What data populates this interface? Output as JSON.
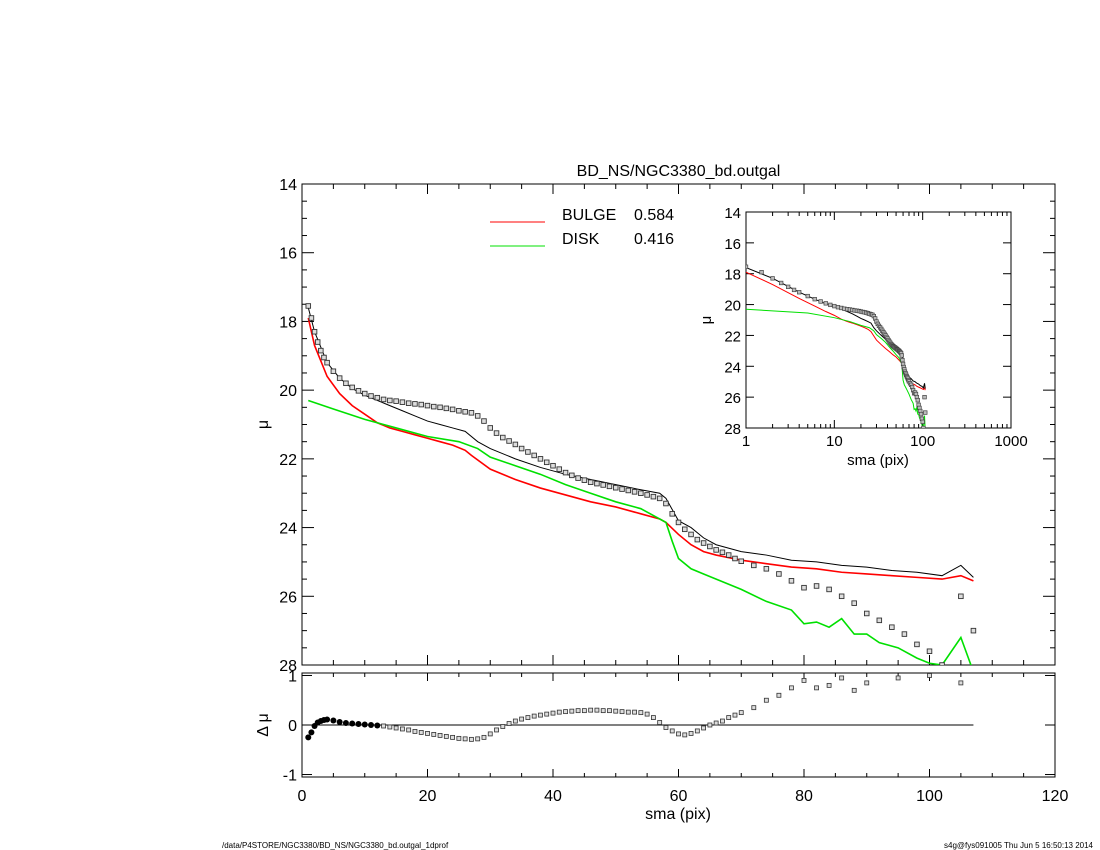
{
  "chart_data": [
    {
      "type": "line",
      "title": "BD_NS/NGC3380_bd.outgal",
      "xlabel": "",
      "ylabel": "μ",
      "xlim": [
        0,
        120
      ],
      "ylim": [
        28,
        14
      ],
      "yticks": [
        "14",
        "16",
        "18",
        "20",
        "22",
        "24",
        "26",
        "28"
      ],
      "legend": [
        {
          "label": "BULGE",
          "value": "0.584",
          "color": "#ff0000"
        },
        {
          "label": "DISK",
          "value": "0.416",
          "color": "#00e000"
        }
      ],
      "series": [
        {
          "name": "BULGE",
          "color": "#ff0000",
          "x": [
            1,
            2,
            4,
            6,
            8,
            10,
            12,
            14,
            16,
            18,
            20,
            22,
            24,
            26,
            27,
            30,
            34,
            38,
            42,
            46,
            50,
            54,
            57,
            58,
            60,
            62,
            64,
            66,
            70,
            74,
            78,
            82,
            86,
            90,
            94,
            98,
            102,
            105,
            107
          ],
          "y": [
            17.9,
            18.7,
            19.6,
            20.1,
            20.45,
            20.7,
            20.95,
            21.1,
            21.2,
            21.3,
            21.4,
            21.5,
            21.6,
            21.75,
            21.9,
            22.3,
            22.6,
            22.85,
            23.05,
            23.25,
            23.4,
            23.6,
            23.75,
            23.85,
            24.2,
            24.5,
            24.7,
            24.8,
            24.95,
            25.05,
            25.15,
            25.2,
            25.3,
            25.35,
            25.4,
            25.45,
            25.5,
            25.4,
            25.55
          ]
        },
        {
          "name": "DISK",
          "color": "#00e000",
          "x": [
            1,
            5,
            10,
            15,
            20,
            25,
            28,
            30,
            34,
            38,
            42,
            46,
            50,
            54,
            57,
            58,
            59,
            60,
            62,
            64,
            66,
            70,
            74,
            78,
            80,
            82,
            84,
            86,
            88,
            90,
            92,
            95,
            98,
            100,
            102,
            105,
            107
          ],
          "y": [
            20.3,
            20.55,
            20.85,
            21.1,
            21.35,
            21.5,
            21.7,
            21.95,
            22.2,
            22.45,
            22.75,
            23.0,
            23.25,
            23.45,
            23.75,
            23.85,
            24.4,
            24.9,
            25.2,
            25.35,
            25.5,
            25.8,
            26.15,
            26.4,
            26.8,
            26.75,
            26.9,
            26.65,
            27.1,
            27.1,
            27.35,
            27.5,
            27.8,
            27.95,
            28.0,
            27.2,
            28.2
          ]
        },
        {
          "name": "",
          "color": "#000000",
          "x": [
            1,
            2,
            4,
            6,
            8,
            10,
            12,
            14,
            16,
            18,
            20,
            22,
            24,
            26,
            28,
            30,
            34,
            38,
            42,
            46,
            50,
            54,
            57,
            58,
            60,
            62,
            64,
            66,
            70,
            74,
            78,
            82,
            86,
            90,
            94,
            98,
            102,
            105,
            107
          ],
          "y": [
            17.6,
            18.3,
            19.2,
            19.65,
            19.95,
            20.15,
            20.3,
            20.45,
            20.6,
            20.75,
            20.9,
            21.0,
            21.1,
            21.2,
            21.5,
            21.7,
            22.0,
            22.25,
            22.45,
            22.6,
            22.75,
            22.9,
            23.0,
            23.15,
            23.8,
            24.0,
            24.3,
            24.5,
            24.7,
            24.8,
            24.95,
            25.0,
            25.1,
            25.15,
            25.25,
            25.3,
            25.4,
            25.1,
            25.45
          ]
        }
      ],
      "points": {
        "x": [
          1,
          1.5,
          2,
          2.5,
          3,
          3.5,
          4,
          5,
          6,
          7,
          8,
          9,
          10,
          11,
          12,
          13,
          14,
          15,
          16,
          17,
          18,
          19,
          20,
          21,
          22,
          23,
          24,
          25,
          26,
          27,
          28,
          29,
          30,
          31,
          32,
          33,
          34,
          35,
          36,
          37,
          38,
          39,
          40,
          41,
          42,
          43,
          44,
          45,
          46,
          47,
          48,
          49,
          50,
          51,
          52,
          53,
          54,
          55,
          56,
          57,
          58,
          59,
          60,
          61,
          62,
          63,
          64,
          65,
          66,
          67,
          68,
          69,
          70,
          72,
          74,
          76,
          78,
          80,
          82,
          84,
          86,
          88,
          90,
          92,
          94,
          96,
          98,
          100,
          102,
          105,
          107
        ],
        "y": [
          17.55,
          17.9,
          18.3,
          18.6,
          18.85,
          19.05,
          19.2,
          19.45,
          19.65,
          19.8,
          19.92,
          20.02,
          20.1,
          20.17,
          20.22,
          20.27,
          20.3,
          20.32,
          20.35,
          20.38,
          20.4,
          20.42,
          20.45,
          20.48,
          20.5,
          20.53,
          20.56,
          20.6,
          20.63,
          20.66,
          20.75,
          20.9,
          21.1,
          21.25,
          21.38,
          21.48,
          21.58,
          21.7,
          21.8,
          21.9,
          22.0,
          22.1,
          22.2,
          22.3,
          22.4,
          22.48,
          22.56,
          22.62,
          22.68,
          22.72,
          22.76,
          22.8,
          22.84,
          22.88,
          22.92,
          22.96,
          23.0,
          23.05,
          23.1,
          23.15,
          23.3,
          23.6,
          23.85,
          24.05,
          24.2,
          24.35,
          24.45,
          24.55,
          24.65,
          24.72,
          24.8,
          24.9,
          24.98,
          25.1,
          25.2,
          25.35,
          25.55,
          25.75,
          25.7,
          25.8,
          26.0,
          26.2,
          26.5,
          26.7,
          26.9,
          27.1,
          27.4,
          27.6,
          28.0,
          26.0,
          27.0
        ]
      }
    },
    {
      "type": "scatter",
      "xlabel": "sma (pix)",
      "ylabel": "Δ μ",
      "xlim": [
        0,
        120
      ],
      "ylim": [
        -1,
        1
      ],
      "xticks": [
        "0",
        "20",
        "40",
        "60",
        "80",
        "100",
        "120"
      ],
      "yticks": [
        "-1",
        "0",
        "1"
      ],
      "residuals": {
        "x": [
          1,
          1.5,
          2,
          2.5,
          3,
          3.5,
          4,
          5,
          6,
          7,
          8,
          9,
          10,
          11,
          12,
          13,
          14,
          15,
          16,
          17,
          18,
          19,
          20,
          21,
          22,
          23,
          24,
          25,
          26,
          27,
          28,
          29,
          30,
          31,
          32,
          33,
          34,
          35,
          36,
          37,
          38,
          39,
          40,
          41,
          42,
          43,
          44,
          45,
          46,
          47,
          48,
          49,
          50,
          51,
          52,
          53,
          54,
          55,
          56,
          57,
          58,
          59,
          60,
          61,
          62,
          63,
          64,
          65,
          66,
          67,
          68,
          69,
          70,
          72,
          74,
          76,
          78,
          80,
          82,
          84,
          86,
          88,
          90,
          95,
          100,
          105
        ],
        "y": [
          -0.25,
          -0.15,
          -0.02,
          0.05,
          0.08,
          0.1,
          0.11,
          0.09,
          0.06,
          0.04,
          0.03,
          0.02,
          0.01,
          0.0,
          -0.01,
          -0.02,
          -0.04,
          -0.06,
          -0.08,
          -0.1,
          -0.13,
          -0.15,
          -0.17,
          -0.19,
          -0.21,
          -0.23,
          -0.25,
          -0.27,
          -0.28,
          -0.29,
          -0.28,
          -0.25,
          -0.18,
          -0.1,
          -0.03,
          0.03,
          0.08,
          0.12,
          0.15,
          0.18,
          0.2,
          0.22,
          0.24,
          0.26,
          0.27,
          0.28,
          0.29,
          0.29,
          0.3,
          0.3,
          0.29,
          0.29,
          0.28,
          0.27,
          0.26,
          0.26,
          0.25,
          0.22,
          0.15,
          0.05,
          -0.05,
          -0.12,
          -0.18,
          -0.2,
          -0.17,
          -0.12,
          -0.06,
          0.0,
          0.04,
          0.08,
          0.15,
          0.2,
          0.25,
          0.35,
          0.5,
          0.6,
          0.75,
          0.9,
          0.75,
          0.8,
          0.95,
          0.7,
          0.85,
          0.95,
          1.0,
          0.85
        ]
      }
    },
    {
      "type": "line",
      "xlabel": "sma (pix)",
      "ylabel": "μ",
      "xscale": "log",
      "xlim": [
        1,
        1000
      ],
      "ylim": [
        28,
        14
      ],
      "xticks": [
        "1",
        "10",
        "100",
        "1000"
      ],
      "yticks": [
        "14",
        "16",
        "18",
        "20",
        "22",
        "24",
        "26",
        "28"
      ]
    }
  ],
  "footer": {
    "left": "/data/P4STORE/NGC3380/BD_NS/NGC3380_bd.outgal_1dprof",
    "right": "s4g@fys091005  Thu Jun  5 16:50:13 2014"
  }
}
